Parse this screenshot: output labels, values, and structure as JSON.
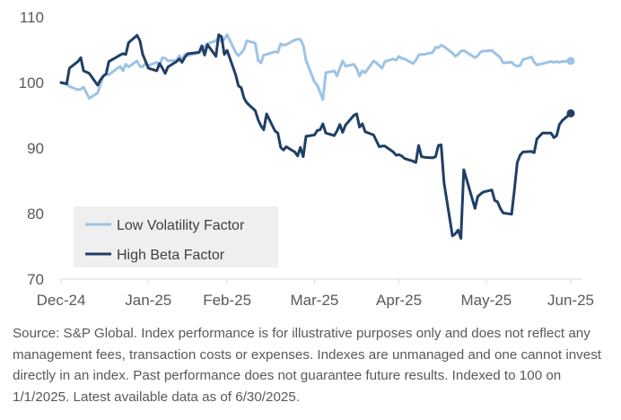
{
  "chart_data": {
    "type": "line",
    "title": "",
    "xlabel": "",
    "ylabel": "",
    "ylim": [
      70,
      110
    ],
    "yticks": [
      70,
      80,
      90,
      100,
      110
    ],
    "xlim": [
      "2024-12-31",
      "2025-06-30"
    ],
    "xticks": [
      {
        "date": "2024-12-31",
        "label": "Dec-24"
      },
      {
        "date": "2025-01-31",
        "label": "Jan-25"
      },
      {
        "date": "2025-02-28",
        "label": "Feb-25"
      },
      {
        "date": "2025-03-31",
        "label": "Mar-25"
      },
      {
        "date": "2025-04-30",
        "label": "Apr-25"
      },
      {
        "date": "2025-05-31",
        "label": "May-25"
      },
      {
        "date": "2025-06-30",
        "label": "Jun-25"
      }
    ],
    "grid": false,
    "legend_position": "bottom-left",
    "series": [
      {
        "name": "Low Volatility Factor",
        "color": "#9dc3e6",
        "points": [
          [
            "2024-12-31",
            100.0
          ],
          [
            "2025-01-02",
            99.8
          ],
          [
            "2025-01-03",
            99.4
          ],
          [
            "2025-01-06",
            98.9
          ],
          [
            "2025-01-07",
            99.0
          ],
          [
            "2025-01-08",
            99.3
          ],
          [
            "2025-01-10",
            97.6
          ],
          [
            "2025-01-13",
            98.4
          ],
          [
            "2025-01-14",
            99.7
          ],
          [
            "2025-01-15",
            101.0
          ],
          [
            "2025-01-16",
            101.3
          ],
          [
            "2025-01-17",
            101.2
          ],
          [
            "2025-01-21",
            102.5
          ],
          [
            "2025-01-22",
            101.8
          ],
          [
            "2025-01-23",
            102.8
          ],
          [
            "2025-01-24",
            102.4
          ],
          [
            "2025-01-27",
            103.3
          ],
          [
            "2025-01-28",
            102.5
          ],
          [
            "2025-01-29",
            102.4
          ],
          [
            "2025-01-30",
            102.9
          ],
          [
            "2025-01-31",
            102.6
          ],
          [
            "2025-02-03",
            103.1
          ],
          [
            "2025-02-04",
            102.6
          ],
          [
            "2025-02-05",
            103.8
          ],
          [
            "2025-02-06",
            103.7
          ],
          [
            "2025-02-07",
            103.3
          ],
          [
            "2025-02-10",
            103.4
          ],
          [
            "2025-02-11",
            104.1
          ],
          [
            "2025-02-12",
            103.5
          ],
          [
            "2025-02-13",
            104.3
          ],
          [
            "2025-02-14",
            104.1
          ],
          [
            "2025-02-18",
            104.6
          ],
          [
            "2025-02-19",
            104.9
          ],
          [
            "2025-02-20",
            105.5
          ],
          [
            "2025-02-21",
            105.9
          ],
          [
            "2025-02-24",
            106.4
          ],
          [
            "2025-02-25",
            106.9
          ],
          [
            "2025-02-26",
            106.2
          ],
          [
            "2025-02-27",
            106.6
          ],
          [
            "2025-02-28",
            107.3
          ],
          [
            "2025-03-03",
            104.6
          ],
          [
            "2025-03-04",
            104.1
          ],
          [
            "2025-03-05",
            104.5
          ],
          [
            "2025-03-06",
            105.1
          ],
          [
            "2025-03-07",
            106.4
          ],
          [
            "2025-03-10",
            106.0
          ],
          [
            "2025-03-11",
            103.4
          ],
          [
            "2025-03-12",
            103.0
          ],
          [
            "2025-03-13",
            104.2
          ],
          [
            "2025-03-14",
            104.3
          ],
          [
            "2025-03-17",
            104.7
          ],
          [
            "2025-03-18",
            104.6
          ],
          [
            "2025-03-19",
            105.9
          ],
          [
            "2025-03-20",
            105.7
          ],
          [
            "2025-03-21",
            105.8
          ],
          [
            "2025-03-24",
            106.5
          ],
          [
            "2025-03-25",
            106.6
          ],
          [
            "2025-03-26",
            106.6
          ],
          [
            "2025-03-27",
            105.7
          ],
          [
            "2025-03-28",
            103.4
          ],
          [
            "2025-03-31",
            100.1
          ],
          [
            "2025-04-01",
            99.6
          ],
          [
            "2025-04-02",
            98.5
          ],
          [
            "2025-04-03",
            97.4
          ],
          [
            "2025-04-04",
            101.5
          ],
          [
            "2025-04-07",
            101.8
          ],
          [
            "2025-04-08",
            101.0
          ],
          [
            "2025-04-09",
            102.2
          ],
          [
            "2025-04-10",
            103.3
          ],
          [
            "2025-04-11",
            102.5
          ],
          [
            "2025-04-14",
            102.8
          ],
          [
            "2025-04-15",
            102.1
          ],
          [
            "2025-04-16",
            101.0
          ],
          [
            "2025-04-17",
            101.8
          ],
          [
            "2025-04-18",
            101.5
          ],
          [
            "2025-04-21",
            103.3
          ],
          [
            "2025-04-22",
            103.0
          ],
          [
            "2025-04-23",
            102.6
          ],
          [
            "2025-04-24",
            102.2
          ],
          [
            "2025-04-25",
            103.2
          ],
          [
            "2025-04-28",
            103.6
          ],
          [
            "2025-04-29",
            103.4
          ],
          [
            "2025-04-30",
            104.0
          ],
          [
            "2025-05-01",
            103.7
          ],
          [
            "2025-05-02",
            103.6
          ],
          [
            "2025-05-05",
            102.9
          ],
          [
            "2025-05-06",
            103.4
          ],
          [
            "2025-05-07",
            104.2
          ],
          [
            "2025-05-08",
            104.3
          ],
          [
            "2025-05-09",
            104.3
          ],
          [
            "2025-05-12",
            104.6
          ],
          [
            "2025-05-13",
            105.4
          ],
          [
            "2025-05-14",
            105.3
          ],
          [
            "2025-05-15",
            105.7
          ],
          [
            "2025-05-16",
            105.5
          ],
          [
            "2025-05-19",
            104.5
          ],
          [
            "2025-05-20",
            104.0
          ],
          [
            "2025-05-21",
            104.3
          ],
          [
            "2025-05-22",
            104.8
          ],
          [
            "2025-05-23",
            104.9
          ],
          [
            "2025-05-27",
            103.8
          ],
          [
            "2025-05-28",
            104.1
          ],
          [
            "2025-05-29",
            104.7
          ],
          [
            "2025-05-30",
            104.8
          ],
          [
            "2025-06-02",
            104.9
          ],
          [
            "2025-06-03",
            104.5
          ],
          [
            "2025-06-04",
            104.2
          ],
          [
            "2025-06-05",
            103.8
          ],
          [
            "2025-06-06",
            103.0
          ],
          [
            "2025-06-09",
            103.1
          ],
          [
            "2025-06-10",
            102.7
          ],
          [
            "2025-06-11",
            102.5
          ],
          [
            "2025-06-12",
            102.6
          ],
          [
            "2025-06-13",
            103.5
          ],
          [
            "2025-06-16",
            103.9
          ],
          [
            "2025-06-17",
            103.1
          ],
          [
            "2025-06-18",
            102.7
          ],
          [
            "2025-06-20",
            102.9
          ],
          [
            "2025-06-23",
            103.2
          ],
          [
            "2025-06-24",
            103.1
          ],
          [
            "2025-06-25",
            103.2
          ],
          [
            "2025-06-26",
            103.1
          ],
          [
            "2025-06-27",
            103.2
          ],
          [
            "2025-06-30",
            103.3
          ]
        ]
      },
      {
        "name": "High Beta Factor",
        "color": "#1f3f66",
        "points": [
          [
            "2024-12-31",
            100.0
          ],
          [
            "2025-01-02",
            99.8
          ],
          [
            "2025-01-03",
            102.2
          ],
          [
            "2025-01-06",
            103.2
          ],
          [
            "2025-01-07",
            103.8
          ],
          [
            "2025-01-08",
            101.8
          ],
          [
            "2025-01-10",
            101.4
          ],
          [
            "2025-01-13",
            99.6
          ],
          [
            "2025-01-14",
            100.4
          ],
          [
            "2025-01-15",
            101.0
          ],
          [
            "2025-01-16",
            101.3
          ],
          [
            "2025-01-17",
            103.2
          ],
          [
            "2025-01-21",
            104.2
          ],
          [
            "2025-01-22",
            104.4
          ],
          [
            "2025-01-23",
            104.3
          ],
          [
            "2025-01-24",
            106.1
          ],
          [
            "2025-01-27",
            107.2
          ],
          [
            "2025-01-28",
            106.4
          ],
          [
            "2025-01-29",
            104.3
          ],
          [
            "2025-01-30",
            103.3
          ],
          [
            "2025-01-31",
            102.2
          ],
          [
            "2025-02-03",
            101.8
          ],
          [
            "2025-02-04",
            102.9
          ],
          [
            "2025-02-05",
            102.2
          ],
          [
            "2025-02-06",
            101.4
          ],
          [
            "2025-02-07",
            102.4
          ],
          [
            "2025-02-10",
            103.2
          ],
          [
            "2025-02-11",
            103.6
          ],
          [
            "2025-02-12",
            103.1
          ],
          [
            "2025-02-13",
            103.9
          ],
          [
            "2025-02-14",
            104.4
          ],
          [
            "2025-02-18",
            104.6
          ],
          [
            "2025-02-19",
            105.6
          ],
          [
            "2025-02-20",
            104.2
          ],
          [
            "2025-02-21",
            105.8
          ],
          [
            "2025-02-24",
            104.0
          ],
          [
            "2025-02-25",
            107.3
          ],
          [
            "2025-02-26",
            107.0
          ],
          [
            "2025-02-27",
            104.3
          ],
          [
            "2025-02-28",
            104.9
          ],
          [
            "2025-03-03",
            101.2
          ],
          [
            "2025-03-04",
            99.5
          ],
          [
            "2025-03-05",
            99.2
          ],
          [
            "2025-03-06",
            97.6
          ],
          [
            "2025-03-07",
            96.9
          ],
          [
            "2025-03-10",
            95.7
          ],
          [
            "2025-03-11",
            94.3
          ],
          [
            "2025-03-12",
            93.4
          ],
          [
            "2025-03-13",
            92.8
          ],
          [
            "2025-03-14",
            95.2
          ],
          [
            "2025-03-17",
            92.6
          ],
          [
            "2025-03-18",
            92.3
          ],
          [
            "2025-03-19",
            90.1
          ],
          [
            "2025-03-20",
            89.7
          ],
          [
            "2025-03-21",
            90.2
          ],
          [
            "2025-03-24",
            89.4
          ],
          [
            "2025-03-25",
            88.8
          ],
          [
            "2025-03-26",
            90.1
          ],
          [
            "2025-03-27",
            88.7
          ],
          [
            "2025-03-28",
            91.8
          ],
          [
            "2025-03-31",
            92.0
          ],
          [
            "2025-04-01",
            92.7
          ],
          [
            "2025-04-02",
            92.8
          ],
          [
            "2025-04-03",
            93.7
          ],
          [
            "2025-04-04",
            92.3
          ],
          [
            "2025-04-07",
            91.9
          ],
          [
            "2025-04-08",
            92.6
          ],
          [
            "2025-04-09",
            93.6
          ],
          [
            "2025-04-10",
            92.4
          ],
          [
            "2025-04-11",
            93.5
          ],
          [
            "2025-04-14",
            95.0
          ],
          [
            "2025-04-15",
            95.2
          ],
          [
            "2025-04-16",
            93.2
          ],
          [
            "2025-04-17",
            93.7
          ],
          [
            "2025-04-18",
            92.5
          ],
          [
            "2025-04-21",
            92.0
          ],
          [
            "2025-04-22",
            91.1
          ],
          [
            "2025-04-23",
            90.2
          ],
          [
            "2025-04-24",
            90.3
          ],
          [
            "2025-04-25",
            90.3
          ],
          [
            "2025-04-28",
            89.4
          ],
          [
            "2025-04-29",
            88.9
          ],
          [
            "2025-04-30",
            89.0
          ],
          [
            "2025-05-01",
            88.8
          ],
          [
            "2025-05-02",
            88.4
          ],
          [
            "2025-05-05",
            88.0
          ],
          [
            "2025-05-06",
            87.8
          ],
          [
            "2025-05-07",
            90.4
          ],
          [
            "2025-05-08",
            88.7
          ],
          [
            "2025-05-09",
            88.6
          ],
          [
            "2025-05-12",
            88.5
          ],
          [
            "2025-05-13",
            88.7
          ],
          [
            "2025-05-14",
            90.4
          ],
          [
            "2025-05-15",
            90.5
          ],
          [
            "2025-05-16",
            84.7
          ],
          [
            "2025-05-19",
            76.6
          ],
          [
            "2025-05-20",
            76.9
          ],
          [
            "2025-05-21",
            77.5
          ],
          [
            "2025-05-22",
            76.2
          ],
          [
            "2025-05-23",
            86.7
          ],
          [
            "2025-05-27",
            80.8
          ],
          [
            "2025-05-28",
            82.6
          ],
          [
            "2025-05-29",
            83.0
          ],
          [
            "2025-05-30",
            83.3
          ],
          [
            "2025-06-02",
            83.6
          ],
          [
            "2025-06-03",
            82.0
          ],
          [
            "2025-06-04",
            81.8
          ],
          [
            "2025-06-05",
            80.8
          ],
          [
            "2025-06-06",
            80.1
          ],
          [
            "2025-06-09",
            79.9
          ],
          [
            "2025-06-10",
            83.6
          ],
          [
            "2025-06-11",
            87.8
          ],
          [
            "2025-06-12",
            88.9
          ],
          [
            "2025-06-13",
            89.4
          ],
          [
            "2025-06-16",
            89.5
          ],
          [
            "2025-06-17",
            89.3
          ],
          [
            "2025-06-18",
            91.4
          ],
          [
            "2025-06-20",
            92.3
          ],
          [
            "2025-06-23",
            92.3
          ],
          [
            "2025-06-24",
            91.6
          ],
          [
            "2025-06-25",
            91.9
          ],
          [
            "2025-06-26",
            93.6
          ],
          [
            "2025-06-27",
            94.2
          ],
          [
            "2025-06-30",
            95.3
          ]
        ]
      }
    ]
  },
  "source_note": "Source: S&P Global. Index performance is for illustrative purposes only and does not reflect any management fees, transaction costs or expenses. Indexes are unmanaged and one cannot invest directly in an index. Past performance does not guarantee future results. Indexed to 100 on 1/1/2025. Latest available data as of 6/30/2025."
}
